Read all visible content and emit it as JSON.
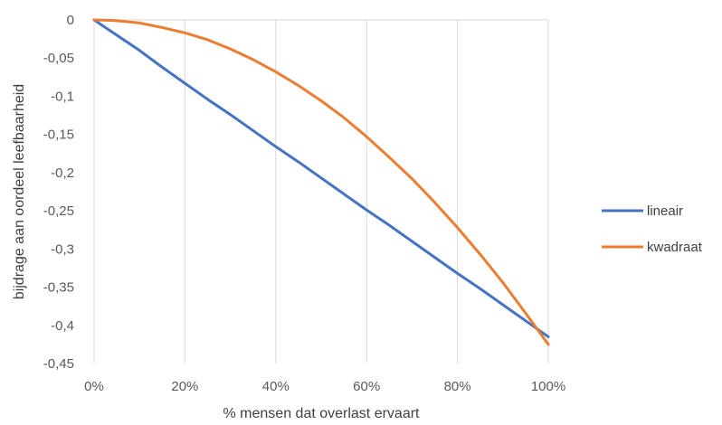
{
  "chart_data": {
    "type": "line",
    "title": "",
    "xlabel": "% mensen dat overlast ervaart",
    "ylabel": "bijdrage aan oordeel leefbaarheid",
    "x": [
      0,
      0.05,
      0.1,
      0.15,
      0.2,
      0.25,
      0.3,
      0.35,
      0.4,
      0.45,
      0.5,
      0.55,
      0.6,
      0.65,
      0.7,
      0.75,
      0.8,
      0.85,
      0.9,
      0.95,
      1.0
    ],
    "series": [
      {
        "name": "lineair",
        "color": "#4472c4",
        "values": [
          0,
          -0.02,
          -0.04,
          -0.062,
          -0.083,
          -0.104,
          -0.124,
          -0.145,
          -0.166,
          -0.186,
          -0.207,
          -0.228,
          -0.249,
          -0.269,
          -0.29,
          -0.311,
          -0.332,
          -0.352,
          -0.373,
          -0.394,
          -0.415
        ]
      },
      {
        "name": "kwadraat",
        "color": "#ed7d31",
        "values": [
          0,
          -0.001,
          -0.004,
          -0.01,
          -0.017,
          -0.026,
          -0.038,
          -0.052,
          -0.068,
          -0.086,
          -0.106,
          -0.128,
          -0.153,
          -0.18,
          -0.208,
          -0.239,
          -0.272,
          -0.307,
          -0.344,
          -0.384,
          -0.425
        ]
      }
    ],
    "xlim": [
      0,
      1
    ],
    "ylim": [
      -0.45,
      0
    ],
    "xticks": [
      0,
      0.2,
      0.4,
      0.6,
      0.8,
      1.0
    ],
    "xtick_labels": [
      "0%",
      "20%",
      "40%",
      "60%",
      "80%",
      "100%"
    ],
    "yticks": [
      0,
      -0.05,
      -0.1,
      -0.15,
      -0.2,
      -0.25,
      -0.3,
      -0.35,
      -0.4,
      -0.45
    ],
    "ytick_labels": [
      "0",
      "-0,05",
      "-0,1",
      "-0,15",
      "-0,2",
      "-0,25",
      "-0,3",
      "-0,35",
      "-0,4",
      "-0,45"
    ],
    "grid": "vertical",
    "legend_position": "right"
  }
}
